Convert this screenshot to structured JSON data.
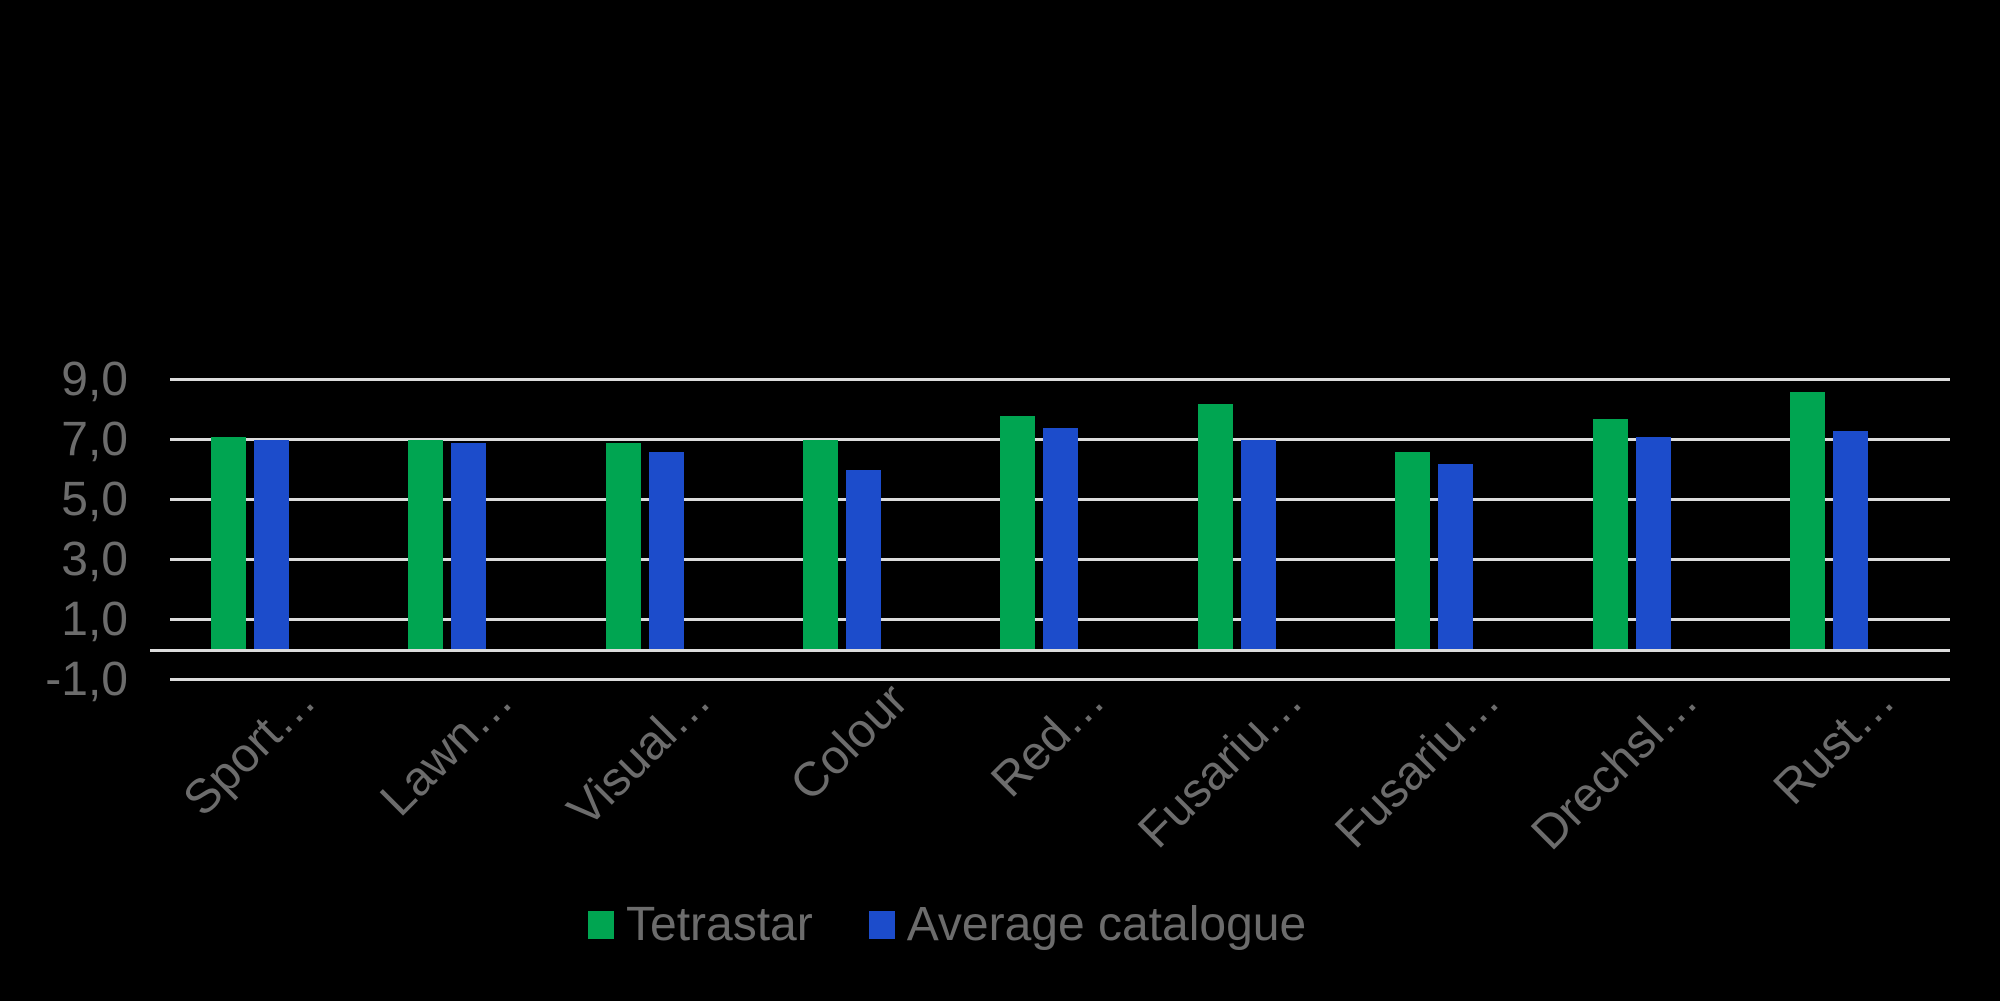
{
  "chart_data": {
    "type": "bar",
    "title": "",
    "categories": [
      "Sport…",
      "Lawn…",
      "Visual…",
      "Colour",
      "Red…",
      "Fusariu…",
      "Fusariu…",
      "Drechsl…",
      "Rust…"
    ],
    "series": [
      {
        "name": "Tetrastar",
        "color": "#00A551",
        "values": [
          7.1,
          7.0,
          6.9,
          7.0,
          7.8,
          8.2,
          6.6,
          7.7,
          8.6
        ]
      },
      {
        "name": "Average catalogue",
        "color": "#1C4CCB",
        "values": [
          7.0,
          6.9,
          6.6,
          6.0,
          7.4,
          7.0,
          6.2,
          7.1,
          7.3
        ]
      }
    ],
    "yticks": [
      {
        "label": "9,0",
        "value": 9
      },
      {
        "label": "7,0",
        "value": 7
      },
      {
        "label": "5,0",
        "value": 5
      },
      {
        "label": "3,0",
        "value": 3
      },
      {
        "label": "1,0",
        "value": 1
      },
      {
        "label": "-1,0",
        "value": -1
      }
    ],
    "ylim": [
      -1,
      9
    ],
    "baseline_value": 0,
    "grid": true,
    "legend_position": "bottom",
    "colors": {
      "background": "#000000",
      "gridline": "#DCDCDC",
      "axis_text": "#6C6C6C",
      "tetrastar": "#00A551",
      "average_catalogue": "#1C4CCB"
    }
  }
}
